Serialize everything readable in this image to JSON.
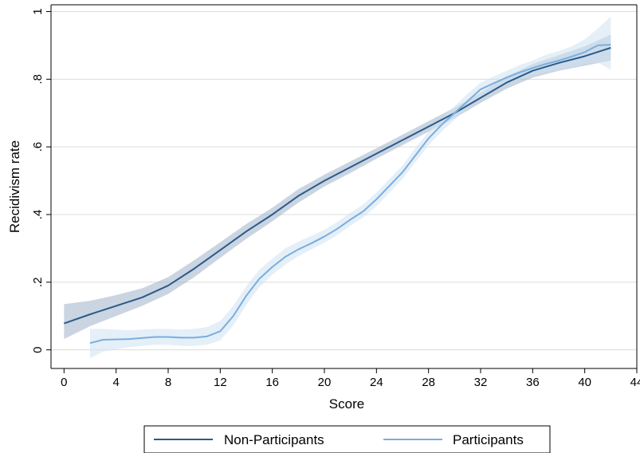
{
  "chart_data": {
    "type": "line",
    "xlabel": "Score",
    "ylabel": "Recidivism rate",
    "xlim": [
      -1,
      44
    ],
    "ylim": [
      -0.055,
      1.02
    ],
    "grid": true,
    "legend_position": "bottom",
    "x_ticks": [
      {
        "value": 0,
        "label": "0"
      },
      {
        "value": 4,
        "label": "4"
      },
      {
        "value": 8,
        "label": "8"
      },
      {
        "value": 12,
        "label": "12"
      },
      {
        "value": 16,
        "label": "16"
      },
      {
        "value": 20,
        "label": "20"
      },
      {
        "value": 24,
        "label": "24"
      },
      {
        "value": 28,
        "label": "28"
      },
      {
        "value": 32,
        "label": "32"
      },
      {
        "value": 36,
        "label": "36"
      },
      {
        "value": 40,
        "label": "40"
      },
      {
        "value": 44,
        "label": "44"
      }
    ],
    "y_ticks": [
      {
        "value": 0,
        "label": "0"
      },
      {
        "value": 0.2,
        "label": ".2"
      },
      {
        "value": 0.4,
        "label": ".4"
      },
      {
        "value": 0.6,
        "label": ".6"
      },
      {
        "value": 0.8,
        "label": ".8"
      },
      {
        "value": 1,
        "label": "1"
      }
    ],
    "series": [
      {
        "name": "Non-Participants",
        "color": "#2a5b8c",
        "band_color": "#9eb3c9",
        "x": [
          0,
          2,
          4,
          6,
          8,
          10,
          12,
          14,
          16,
          18,
          20,
          22,
          24,
          26,
          28,
          30,
          32,
          34,
          36,
          38,
          40,
          42
        ],
        "y": [
          0.078,
          0.105,
          0.13,
          0.155,
          0.19,
          0.24,
          0.295,
          0.35,
          0.4,
          0.455,
          0.5,
          0.54,
          0.58,
          0.62,
          0.66,
          0.7,
          0.745,
          0.79,
          0.825,
          0.848,
          0.868,
          0.893
        ],
        "lower": [
          0.032,
          0.07,
          0.1,
          0.13,
          0.165,
          0.215,
          0.272,
          0.328,
          0.38,
          0.435,
          0.483,
          0.523,
          0.565,
          0.605,
          0.645,
          0.685,
          0.73,
          0.772,
          0.805,
          0.825,
          0.84,
          0.855
        ],
        "upper": [
          0.135,
          0.145,
          0.162,
          0.182,
          0.215,
          0.265,
          0.318,
          0.372,
          0.42,
          0.475,
          0.518,
          0.557,
          0.596,
          0.636,
          0.676,
          0.716,
          0.76,
          0.808,
          0.845,
          0.871,
          0.897,
          0.932
        ]
      },
      {
        "name": "Participants",
        "color": "#7aaedd",
        "band_color": "#cfe1f2",
        "x": [
          2,
          3,
          5,
          7,
          8,
          9,
          10,
          11,
          12,
          13,
          14,
          15,
          16,
          17,
          18,
          19,
          20,
          21,
          22,
          23,
          24,
          25,
          26,
          27,
          28,
          29,
          30,
          31,
          32,
          33,
          34,
          35,
          36,
          37,
          38,
          39,
          40,
          41,
          42
        ],
        "y": [
          0.02,
          0.03,
          0.032,
          0.038,
          0.038,
          0.036,
          0.036,
          0.04,
          0.055,
          0.1,
          0.16,
          0.21,
          0.245,
          0.275,
          0.297,
          0.315,
          0.335,
          0.358,
          0.385,
          0.41,
          0.445,
          0.485,
          0.525,
          0.575,
          0.625,
          0.665,
          0.7,
          0.735,
          0.77,
          0.788,
          0.805,
          0.82,
          0.833,
          0.845,
          0.855,
          0.867,
          0.88,
          0.9,
          0.902
        ],
        "lower": [
          -0.025,
          -0.005,
          0.008,
          0.015,
          0.015,
          0.012,
          0.012,
          0.015,
          0.028,
          0.072,
          0.133,
          0.185,
          0.222,
          0.252,
          0.277,
          0.297,
          0.317,
          0.34,
          0.367,
          0.392,
          0.425,
          0.465,
          0.505,
          0.555,
          0.605,
          0.645,
          0.68,
          0.715,
          0.748,
          0.768,
          0.785,
          0.8,
          0.812,
          0.82,
          0.828,
          0.836,
          0.845,
          0.85,
          0.828
        ],
        "upper": [
          0.062,
          0.062,
          0.058,
          0.062,
          0.062,
          0.06,
          0.062,
          0.068,
          0.085,
          0.13,
          0.188,
          0.237,
          0.27,
          0.3,
          0.32,
          0.337,
          0.355,
          0.378,
          0.405,
          0.43,
          0.465,
          0.505,
          0.545,
          0.597,
          0.645,
          0.685,
          0.72,
          0.757,
          0.79,
          0.808,
          0.825,
          0.842,
          0.855,
          0.872,
          0.883,
          0.897,
          0.918,
          0.95,
          0.985
        ]
      }
    ]
  }
}
